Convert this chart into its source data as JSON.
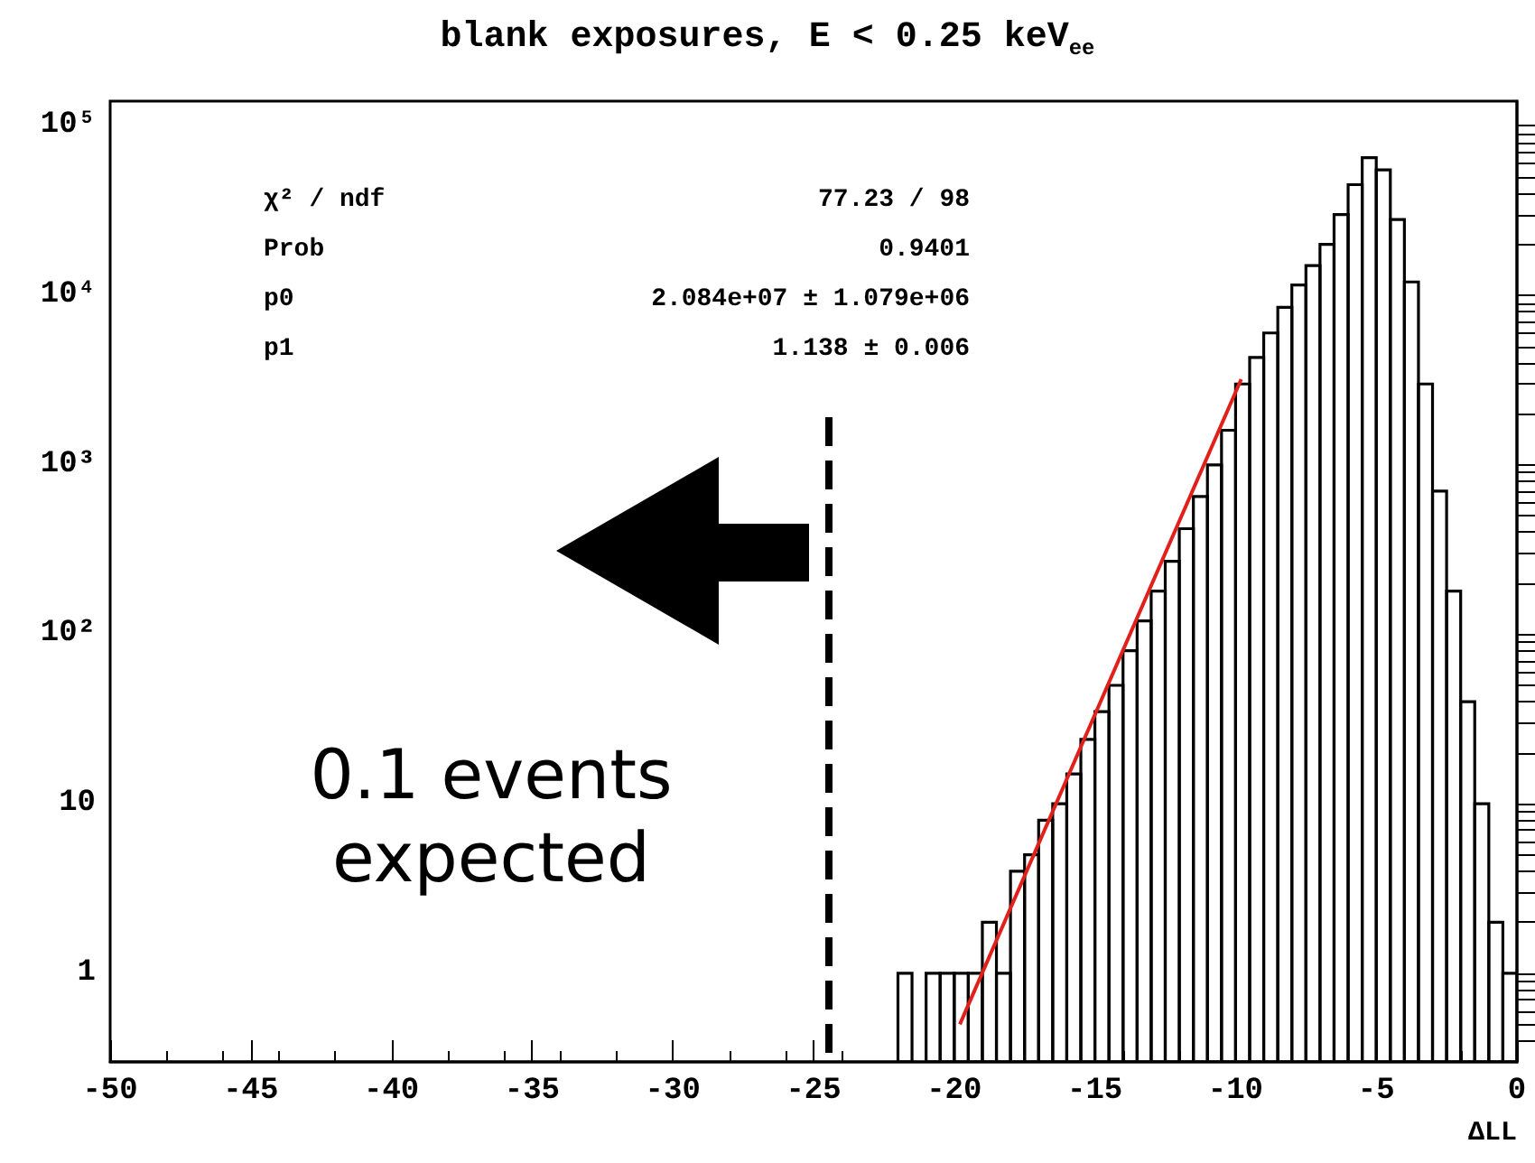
{
  "chart_data": {
    "type": "histogram",
    "title": "blank exposures, E < 0.25 keV$_{ee}$",
    "xlabel": "ΔLL",
    "series": [
      {
        "color": "#000000",
        "bins": [
          -22,
          -21.5,
          -21,
          -20.5,
          -20,
          -19.5,
          -19,
          -18.5,
          -18,
          -17.5,
          -17,
          -16.5,
          -16,
          -15.5,
          -15,
          -14.5,
          -14,
          -13.5,
          -13,
          -12.5,
          -12,
          -11.5,
          -11,
          -10.5,
          -10,
          -9.5,
          -9,
          -8.5,
          -8,
          -7.5,
          -7,
          -6.5,
          -6,
          -5.5,
          -5,
          -4.5,
          -4,
          -3.5,
          -3,
          -2.5,
          -2,
          -1.5,
          -1,
          -0.5,
          0
        ],
        "values": [
          1,
          null,
          1,
          1,
          1,
          1,
          2,
          1,
          4,
          5,
          8,
          10,
          15,
          24,
          35,
          50,
          80,
          120,
          180,
          270,
          420,
          650,
          1000,
          1600,
          3000,
          4300,
          6000,
          8500,
          11500,
          15000,
          20000,
          30000,
          45000,
          65000,
          55000,
          28000,
          12000,
          3000,
          700,
          180,
          40,
          10,
          2,
          1
        ]
      },
      {
        "type": "line",
        "color": "#e0201b",
        "marker": "none",
        "x": [
          -19.8,
          -9.8
        ],
        "values": [
          0.5,
          3200
        ]
      }
    ],
    "xlim": [
      -50,
      0
    ],
    "xticks": [
      -50,
      -45,
      -40,
      -35,
      -30,
      -25,
      -20,
      -15,
      -10,
      -5,
      0
    ],
    "ylim": [
      0.3,
      140000
    ],
    "yticks": [
      1,
      10,
      {
        "value": 100,
        "label": "10²"
      },
      {
        "value": 1000,
        "label": "10³"
      },
      {
        "value": 10000,
        "label": "10⁴"
      },
      {
        "value": 100000,
        "label": "10⁵"
      }
    ],
    "log": true,
    "grid": false,
    "ref_lines": [
      {
        "axis": "x",
        "value": -24.5,
        "color": "#000000",
        "line_style": "dashed"
      }
    ],
    "annotations": [
      "χ² / ndf",
      "77.23 / 98",
      "Prob",
      "0.9401",
      "p0",
      "2.084e+07 ± 1.079e+06",
      "p1",
      "1.138 ± 0.006",
      "0.1 events\nexpected"
    ]
  }
}
